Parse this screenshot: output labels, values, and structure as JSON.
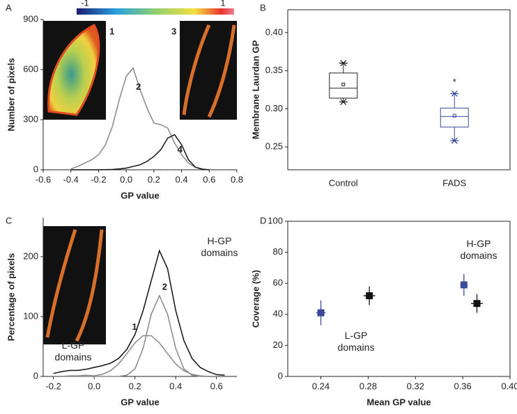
{
  "chart_data": [
    {
      "type": "line",
      "panel": "A",
      "xlabel": "GP value",
      "ylabel": "Number of pixels",
      "colorbar_labels": [
        "-1",
        "1"
      ],
      "image_labels": [
        "1",
        "3"
      ],
      "x": [
        -0.4,
        -0.35,
        -0.3,
        -0.25,
        -0.2,
        -0.15,
        -0.1,
        -0.05,
        0,
        0.05,
        0.1,
        0.15,
        0.2,
        0.25,
        0.3,
        0.35,
        0.4,
        0.45,
        0.5,
        0.55,
        0.6
      ],
      "series": [
        {
          "name": "2",
          "color": "#888888",
          "values": [
            5,
            20,
            40,
            60,
            90,
            150,
            260,
            420,
            560,
            610,
            480,
            370,
            280,
            270,
            250,
            160,
            90,
            40,
            15,
            5,
            0
          ]
        },
        {
          "name": "4",
          "color": "#111111",
          "values": [
            0,
            0,
            0,
            0,
            0,
            1,
            2,
            5,
            10,
            20,
            30,
            50,
            80,
            120,
            190,
            210,
            150,
            60,
            15,
            3,
            0
          ]
        }
      ],
      "xlim": [
        -0.6,
        0.8
      ],
      "xticks": [
        -0.6,
        -0.4,
        -0.2,
        {
          "value": 0,
          "label": "0.0"
        },
        0.2,
        0.4,
        0.6,
        0.8
      ],
      "ylim": [
        0,
        900
      ],
      "yticks": [
        0,
        300,
        600,
        900
      ]
    },
    {
      "type": "box",
      "panel": "B",
      "ylabel": "Membrane Laurdan GP",
      "categories": [
        "Control",
        "FADS"
      ],
      "boxes": [
        {
          "color": "#222222",
          "min": 0.309,
          "q1": 0.314,
          "median": 0.327,
          "q3": 0.347,
          "max": 0.36,
          "mean": 0.332
        },
        {
          "color": "#3a4a9a",
          "min": 0.258,
          "q1": 0.276,
          "median": 0.29,
          "q3": 0.301,
          "max": 0.32,
          "mean": 0.291
        }
      ],
      "annotation": "*",
      "ylim": [
        0.22,
        0.43
      ],
      "yticks": [
        0.25,
        {
          "value": 0.3,
          "label": "0.30"
        },
        0.35,
        {
          "value": 0.4,
          "label": "0.40"
        }
      ]
    },
    {
      "type": "line",
      "panel": "C",
      "xlabel": "GP value",
      "ylabel": "Percentage of pixels",
      "annotations": [
        "H-GP domains",
        "L-GP domains"
      ],
      "x": [
        -0.2,
        -0.16,
        -0.12,
        -0.08,
        -0.04,
        0,
        0.04,
        0.08,
        0.12,
        0.16,
        0.2,
        0.24,
        0.28,
        0.32,
        0.36,
        0.4,
        0.44,
        0.48,
        0.52,
        0.56,
        0.6,
        0.64
      ],
      "series": [
        {
          "color": "#111111",
          "values": [
            5,
            8,
            10,
            10,
            12,
            15,
            18,
            22,
            30,
            45,
            70,
            110,
            160,
            210,
            180,
            110,
            60,
            30,
            15,
            8,
            3,
            2
          ]
        },
        {
          "name": "1",
          "color": "#888888",
          "values": [
            0,
            0,
            1,
            1,
            2,
            1,
            3.5,
            9.5,
            21,
            38,
            56,
            68,
            68,
            56,
            38,
            21,
            9.5,
            3.5,
            1,
            0,
            0,
            0
          ]
        },
        {
          "name": "2",
          "color": "#888888",
          "values": [
            0,
            0,
            0,
            0,
            0,
            0,
            0,
            0,
            0,
            2,
            12.5,
            47,
            104,
            135,
            104,
            47,
            12.5,
            2,
            0,
            0,
            0,
            0
          ]
        }
      ],
      "xlim": [
        -0.25,
        0.7
      ],
      "xticks": [
        -0.2,
        {
          "value": 0,
          "label": "0.0"
        },
        0.2,
        0.4,
        0.6
      ],
      "ylim": [
        0,
        265
      ],
      "yticks": [
        0,
        100,
        200
      ]
    },
    {
      "type": "scatter",
      "panel": "D",
      "xlabel": "Mean GP value",
      "ylabel": "Coverage (%)",
      "annotations": [
        "H-GP domains",
        "L-GP domains"
      ],
      "series": [
        {
          "color": "#3a4a9a",
          "x": [
            0.24,
            0.361
          ],
          "values": [
            41,
            59
          ],
          "xerr": [
            0.004,
            0.003
          ],
          "yerr": [
            8,
            7
          ]
        },
        {
          "color": "#111111",
          "x": [
            0.281,
            0.372
          ],
          "values": [
            52,
            47
          ],
          "xerr": [
            0.005,
            0.005
          ],
          "yerr": [
            6,
            6
          ]
        }
      ],
      "xlim": [
        0.212,
        0.4
      ],
      "xticks": [
        0.24,
        0.28,
        0.32,
        0.36,
        {
          "value": 0.4,
          "label": "0.40"
        }
      ],
      "ylim": [
        0,
        100
      ],
      "yticks": [
        0,
        20,
        40,
        60,
        80,
        100
      ]
    }
  ]
}
